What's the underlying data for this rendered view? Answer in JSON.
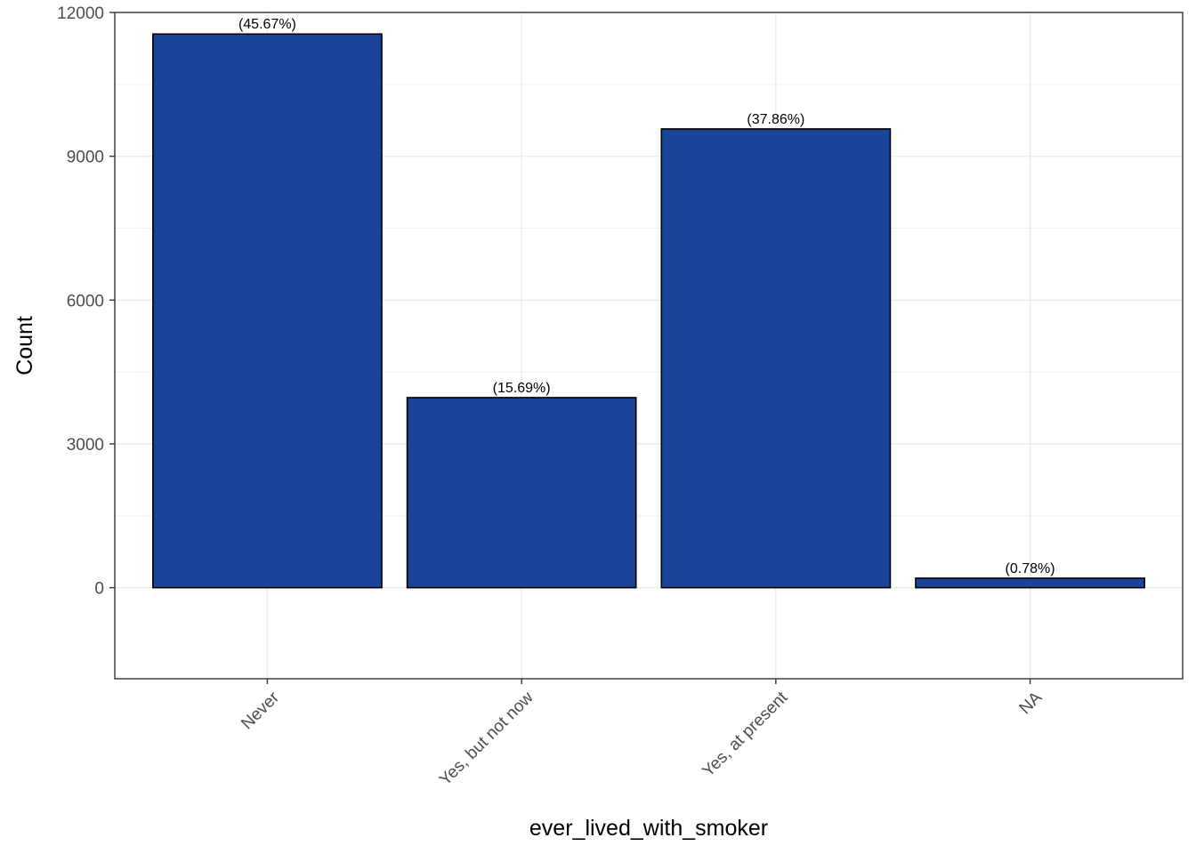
{
  "chart_data": {
    "type": "bar",
    "categories": [
      "Never",
      "Yes, but not now",
      "Yes, at present",
      "NA"
    ],
    "values": [
      11550,
      3965,
      9570,
      198
    ],
    "data_labels": [
      "(45.67%)",
      "(15.69%)",
      "(37.86%)",
      "(0.78%)"
    ],
    "title": "",
    "xlabel": "ever_lived_with_smoker",
    "ylabel": "Count",
    "ylim": [
      -1900,
      12000
    ],
    "y_ticks": [
      0,
      3000,
      6000,
      9000,
      12000
    ],
    "y_tick_labels": [
      "0",
      "3000",
      "6000",
      "9000",
      "12000"
    ],
    "grid": true,
    "legend": "none",
    "colors": {
      "bar_fill": "#1a4498",
      "bar_stroke": "#000000",
      "grid_major": "#ebebeb",
      "grid_minor": "#f2f2f2",
      "panel_border": "#333333"
    }
  }
}
